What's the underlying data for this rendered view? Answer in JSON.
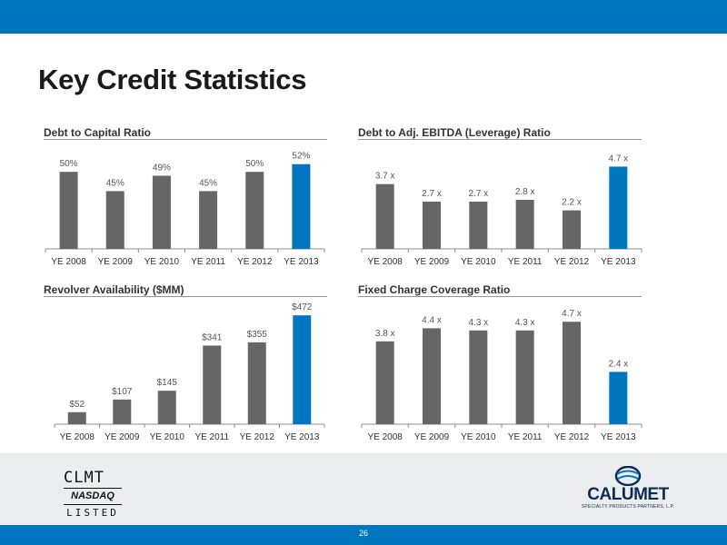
{
  "page": {
    "title": "Key Credit Statistics",
    "page_number": "26"
  },
  "colors": {
    "brand_blue": "#0076c0",
    "bar_gray": "#666666",
    "bar_highlight": "#0076c0",
    "footer_band": "#ebedef"
  },
  "footer": {
    "left_logo": {
      "ticker": "CLMT",
      "exchange": "NASDAQ",
      "listed": "LISTED",
      "icon": "nasdaq-listing-mark"
    },
    "right_logo": {
      "name": "CALUMET",
      "tagline": "SPECIALTY PRODUCTS PARTNERS, L.P.",
      "icon": "calumet-globe-icon"
    }
  },
  "chart_data": [
    {
      "type": "bar",
      "title": "Debt to Capital Ratio",
      "categories": [
        "YE 2008",
        "YE 2009",
        "YE 2010",
        "YE 2011",
        "YE 2012",
        "YE 2013"
      ],
      "values": [
        50,
        45,
        49,
        45,
        50,
        52
      ],
      "labels": [
        "50%",
        "45%",
        "49%",
        "45%",
        "50%",
        "52%"
      ],
      "highlight_index": 5,
      "ylim": [
        30,
        55
      ],
      "grid": false,
      "legend": "none"
    },
    {
      "type": "bar",
      "title": "Debt to Adj. EBITDA (Leverage) Ratio",
      "categories": [
        "YE 2008",
        "YE 2009",
        "YE 2010",
        "YE 2011",
        "YE 2012",
        "YE 2013"
      ],
      "values": [
        3.7,
        2.7,
        2.7,
        2.8,
        2.2,
        4.7
      ],
      "labels": [
        "3.7 x",
        "2.7 x",
        "2.7 x",
        "2.8 x",
        "2.2 x",
        "4.7 x"
      ],
      "highlight_index": 5,
      "ylim": [
        0,
        5.5
      ],
      "grid": false,
      "legend": "none"
    },
    {
      "type": "bar",
      "title": "Revolver Availability ($MM)",
      "categories": [
        "YE 2008",
        "YE 2009",
        "YE 2010",
        "YE 2011",
        "YE 2012",
        "YE 2013"
      ],
      "values": [
        52,
        107,
        145,
        341,
        355,
        472
      ],
      "labels": [
        "$52",
        "$107",
        "$145",
        "$341",
        "$355",
        "$472"
      ],
      "highlight_index": 5,
      "ylim": [
        0,
        520
      ],
      "grid": false,
      "legend": "none"
    },
    {
      "type": "bar",
      "title": "Fixed Charge Coverage Ratio",
      "categories": [
        "YE 2008",
        "YE 2009",
        "YE 2010",
        "YE 2011",
        "YE 2012",
        "YE 2013"
      ],
      "values": [
        3.8,
        4.4,
        4.3,
        4.3,
        4.7,
        2.4
      ],
      "labels": [
        "3.8 x",
        "4.4 x",
        "4.3 x",
        "4.3 x",
        "4.7 x",
        "2.4 x"
      ],
      "highlight_index": 5,
      "ylim": [
        0,
        5.5
      ],
      "grid": false,
      "legend": "none"
    }
  ]
}
